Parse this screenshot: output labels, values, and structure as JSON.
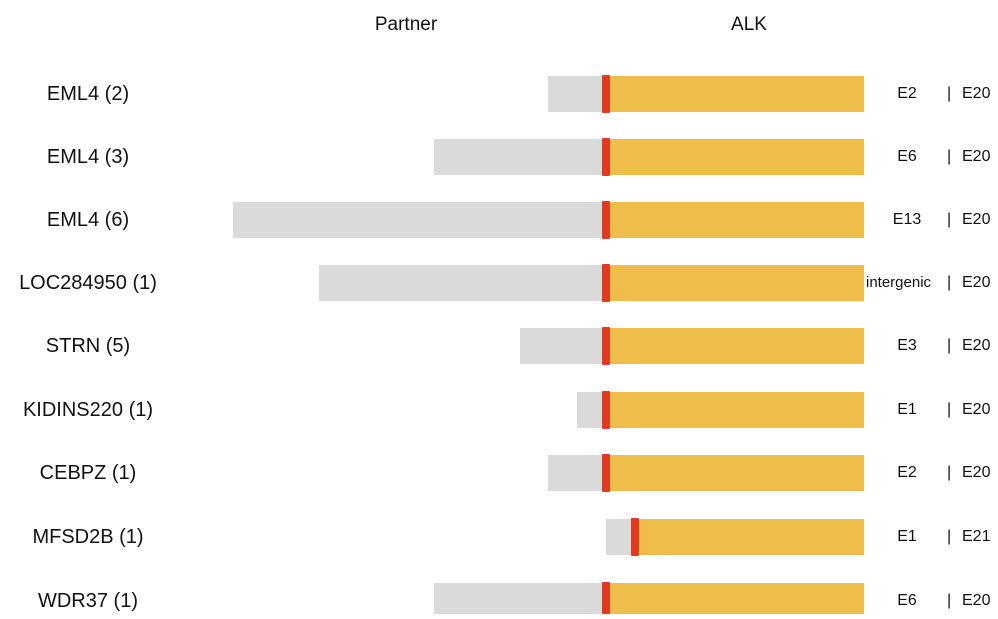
{
  "headers": {
    "partner": "Partner",
    "alk": "ALK"
  },
  "colors": {
    "partner_bar": "#dadada",
    "alk_bar": "#efbe4a",
    "breakpoint": "#e23a1f"
  },
  "rows": [
    {
      "label": "EML4 (2)",
      "partner_exon": "E2",
      "separator": "|",
      "alk_exon": "E20"
    },
    {
      "label": "EML4 (3)",
      "partner_exon": "E6",
      "separator": "|",
      "alk_exon": "E20"
    },
    {
      "label": "EML4 (6)",
      "partner_exon": "E13",
      "separator": "|",
      "alk_exon": "E20"
    },
    {
      "label": "LOC284950 (1)",
      "partner_exon": "intergenic",
      "separator": "|",
      "alk_exon": "E20"
    },
    {
      "label": "STRN (5)",
      "partner_exon": "E3",
      "separator": "|",
      "alk_exon": "E20"
    },
    {
      "label": "KIDINS220 (1)",
      "partner_exon": "E1",
      "separator": "|",
      "alk_exon": "E20"
    },
    {
      "label": "CEBPZ (1)",
      "partner_exon": "E2",
      "separator": "|",
      "alk_exon": "E20"
    },
    {
      "label": "MFSD2B (1)",
      "partner_exon": "E1",
      "separator": "|",
      "alk_exon": "E21"
    },
    {
      "label": "WDR37 (1)",
      "partner_exon": "E6",
      "separator": "|",
      "alk_exon": "E20"
    }
  ]
}
